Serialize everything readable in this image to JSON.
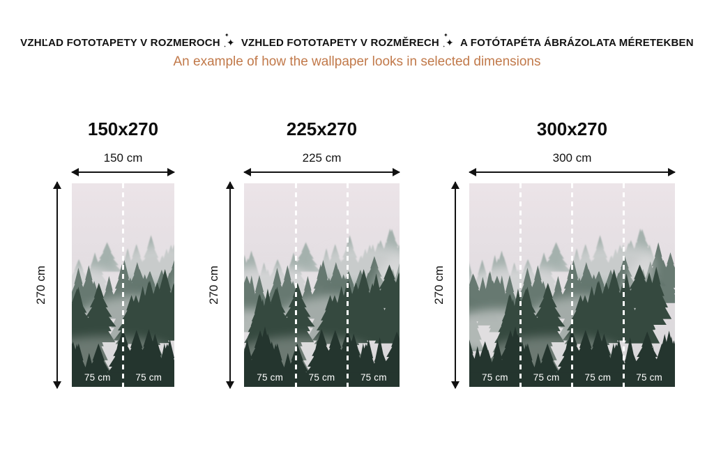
{
  "page": {
    "header": {
      "title_segments": [
        "VZHĽAD FOTOTAPETY V ROZMEROCH",
        "VZHLED FOTOTAPETY V ROZMĚRECH",
        "A FOTÓTAPÉTA ÁBRÁZOLATA MÉRETEKBEN"
      ],
      "separator_icon": "✦",
      "subtitle": "An example of how the wallpaper looks in selected dimensions",
      "title_color": "#111111",
      "subtitle_color": "#c1794a"
    }
  },
  "panels": [
    {
      "title": "150x270",
      "width_label": "150 cm",
      "height_label": "270 cm",
      "segments": [
        "75 cm",
        "75 cm"
      ]
    },
    {
      "title": "225x270",
      "width_label": "225 cm",
      "height_label": "270 cm",
      "segments": [
        "75 cm",
        "75 cm",
        "75 cm"
      ]
    },
    {
      "title": "300x270",
      "width_label": "300 cm",
      "height_label": "270 cm",
      "segments": [
        "75 cm",
        "75 cm",
        "75 cm",
        "75 cm"
      ]
    }
  ],
  "artwork": {
    "name": "misty-forest-wallpaper",
    "colors": {
      "sky_fog": "#ece4e8",
      "far_trees": "#99a9a3",
      "mid_trees": "#5d7168",
      "near_trees": "#35493f",
      "bottom_trees": "#24352e",
      "fog": "#e6e2e5",
      "divider": "#ffffff",
      "segment_text": "#ffffff"
    }
  }
}
